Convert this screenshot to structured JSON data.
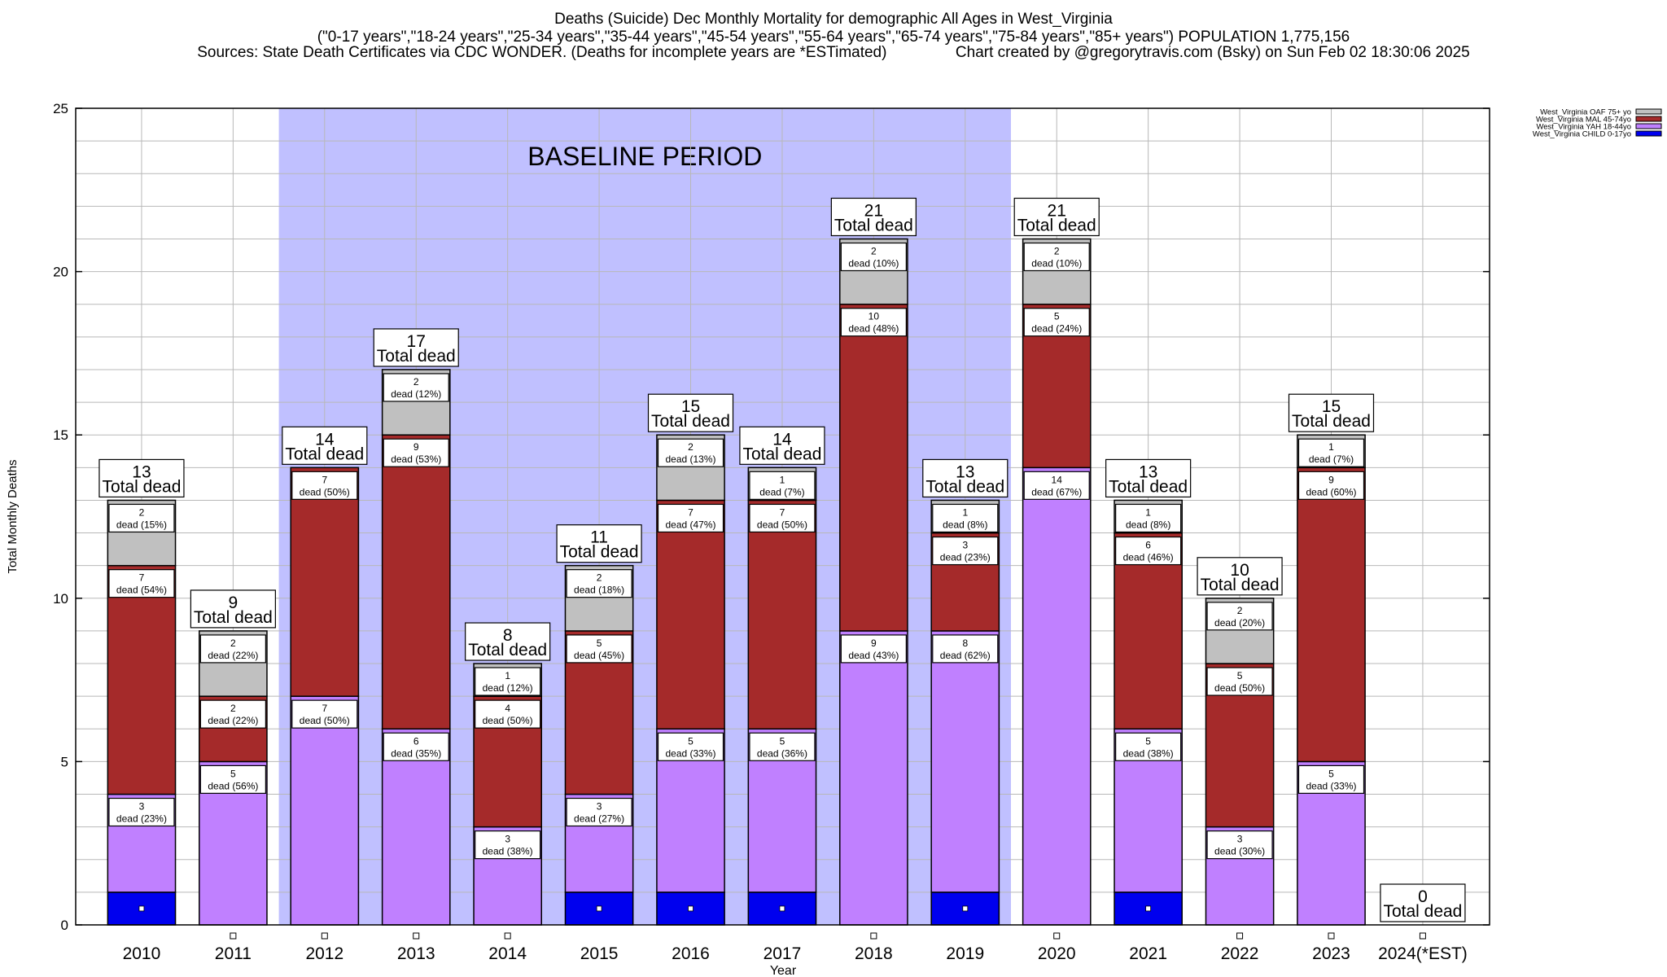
{
  "header": {
    "line1": "Deaths (Suicide) Dec Monthly Mortality for demographic All Ages in West_Virginia",
    "line2": "(\"0-17 years\",\"18-24 years\",\"25-34 years\",\"35-44 years\",\"45-54 years\",\"55-64 years\",\"65-74 years\",\"75-84 years\",\"85+ years\") POPULATION 1,775,156",
    "line3": "Sources: State Death Certificates via CDC WONDER. (Deaths for incomplete years are *ESTimated)                Chart created by @gregorytravis.com (Bsky) on Sun Feb 02 18:30:06 2025"
  },
  "colors": {
    "child": "#0000ee",
    "yah": "#c080ff",
    "mal": "#a52a2a",
    "oaf": "#c0c0c0",
    "baseline": "#c0c0ff"
  },
  "chart_data": {
    "type": "bar",
    "stacked": true,
    "categories": [
      "2010",
      "2011",
      "2012",
      "2013",
      "2014",
      "2015",
      "2016",
      "2017",
      "2018",
      "2019",
      "2020",
      "2021",
      "2022",
      "2023",
      "2024(*EST)"
    ],
    "series": [
      {
        "name": "West_Virginia CHILD 0-17yo",
        "key": "child",
        "values": [
          1,
          0,
          0,
          0,
          0,
          1,
          1,
          1,
          0,
          1,
          0,
          1,
          0,
          0,
          0
        ]
      },
      {
        "name": "West_Virginia YAH 18-44yo",
        "key": "yah",
        "values": [
          3,
          5,
          7,
          6,
          3,
          3,
          5,
          5,
          9,
          8,
          14,
          5,
          3,
          5,
          0
        ]
      },
      {
        "name": "West_Virginia MAL 45-74yo",
        "key": "mal",
        "values": [
          7,
          2,
          7,
          9,
          4,
          5,
          7,
          7,
          10,
          3,
          5,
          6,
          5,
          9,
          0
        ]
      },
      {
        "name": "West_Virginia OAF 75+ yo",
        "key": "oaf",
        "values": [
          2,
          2,
          0,
          2,
          1,
          2,
          2,
          1,
          2,
          1,
          2,
          1,
          2,
          1,
          0
        ]
      }
    ],
    "segment_labels": {
      "yah": [
        "3\ndead (23%)",
        "5\ndead (56%)",
        "7\ndead (50%)",
        "6\ndead (35%)",
        "3\ndead (38%)",
        "3\ndead (27%)",
        "5\ndead (33%)",
        "5\ndead (36%)",
        "9\ndead (43%)",
        "8\ndead (62%)",
        "14\ndead (67%)",
        "5\ndead (38%)",
        "3\ndead (30%)",
        "5\ndead (33%)",
        ""
      ],
      "mal": [
        "7\ndead (54%)",
        "2\ndead (22%)",
        "7\ndead (50%)",
        "9\ndead (53%)",
        "4\ndead (50%)",
        "5\ndead (45%)",
        "7\ndead (47%)",
        "7\ndead (50%)",
        "10\ndead (48%)",
        "3\ndead (23%)",
        "5\ndead (24%)",
        "6\ndead (46%)",
        "5\ndead (50%)",
        "9\ndead (60%)",
        ""
      ],
      "oaf": [
        "2\ndead (15%)",
        "2\ndead (22%)",
        "",
        "2\ndead (12%)",
        "1\ndead (12%)",
        "2\ndead (18%)",
        "2\ndead (13%)",
        "1\ndead (7%)",
        "2\ndead (10%)",
        "1\ndead (8%)",
        "2\ndead (10%)",
        "1\ndead (8%)",
        "2\ndead (20%)",
        "1\ndead (7%)",
        ""
      ]
    },
    "totals": [
      13,
      9,
      14,
      17,
      8,
      11,
      15,
      14,
      21,
      13,
      21,
      13,
      10,
      15,
      0
    ],
    "total_suffix": "Total dead",
    "ylim": [
      0,
      25
    ],
    "yticks": [
      0,
      5,
      10,
      15,
      20,
      25
    ],
    "ylabel": "Total Monthly Deaths",
    "xlabel": "Year",
    "baseline": {
      "label": "BASELINE PERIOD",
      "from": "2012",
      "to": "2019"
    },
    "legend_position": "top-right"
  }
}
